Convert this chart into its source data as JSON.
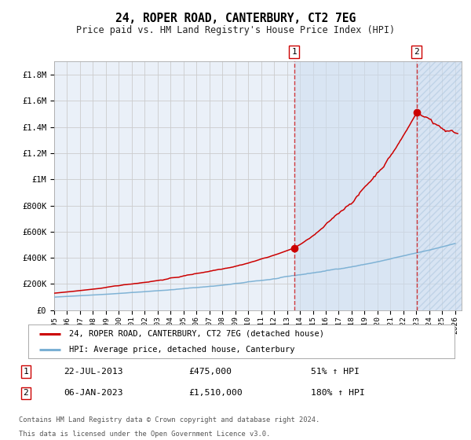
{
  "title": "24, ROPER ROAD, CANTERBURY, CT2 7EG",
  "subtitle": "Price paid vs. HM Land Registry's House Price Index (HPI)",
  "ylim": [
    0,
    1900000
  ],
  "xlim_start": 1995.0,
  "xlim_end": 2026.5,
  "background_color": "#ffffff",
  "plot_bg_color": "#eaf0f8",
  "hatch_color": "#b0c8e0",
  "grid_color": "#cccccc",
  "sale1_date": 2013.55,
  "sale1_price": 475000,
  "sale2_date": 2023.02,
  "sale2_price": 1510000,
  "red_line_color": "#cc0000",
  "blue_line_color": "#7ab0d4",
  "marker_color": "#cc0000",
  "legend_label_red": "24, ROPER ROAD, CANTERBURY, CT2 7EG (detached house)",
  "legend_label_blue": "HPI: Average price, detached house, Canterbury",
  "annotation1_date": "22-JUL-2013",
  "annotation1_price": "£475,000",
  "annotation1_hpi": "51% ↑ HPI",
  "annotation2_date": "06-JAN-2023",
  "annotation2_price": "£1,510,000",
  "annotation2_hpi": "180% ↑ HPI",
  "footer_line1": "Contains HM Land Registry data © Crown copyright and database right 2024.",
  "footer_line2": "This data is licensed under the Open Government Licence v3.0.",
  "ytick_labels": [
    "£0",
    "£200K",
    "£400K",
    "£600K",
    "£800K",
    "£1M",
    "£1.2M",
    "£1.4M",
    "£1.6M",
    "£1.8M"
  ],
  "ytick_values": [
    0,
    200000,
    400000,
    600000,
    800000,
    1000000,
    1200000,
    1400000,
    1600000,
    1800000
  ],
  "xtick_years": [
    1995,
    1996,
    1997,
    1998,
    1999,
    2000,
    2001,
    2002,
    2003,
    2004,
    2005,
    2006,
    2007,
    2008,
    2009,
    2010,
    2011,
    2012,
    2013,
    2014,
    2015,
    2016,
    2017,
    2018,
    2019,
    2020,
    2021,
    2022,
    2023,
    2024,
    2025,
    2026
  ]
}
